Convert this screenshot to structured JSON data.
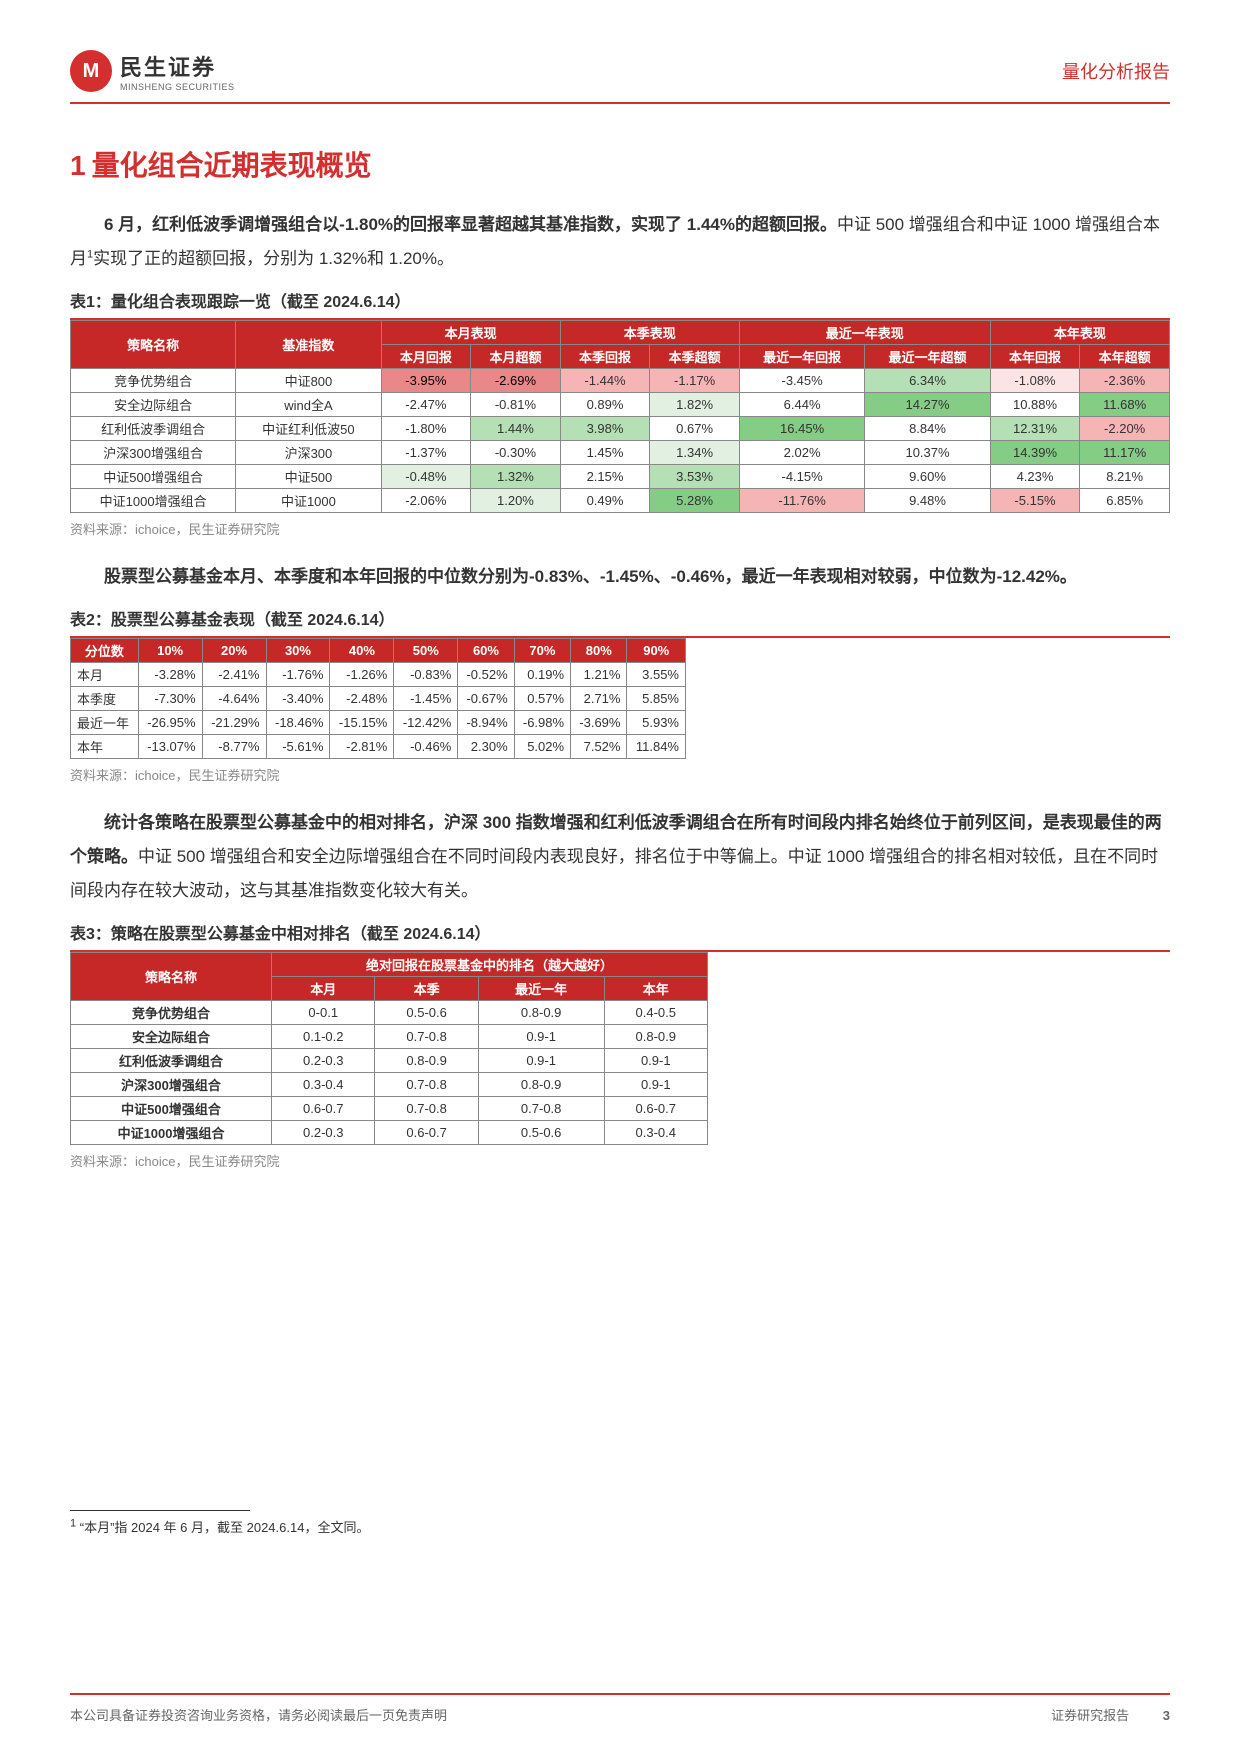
{
  "header": {
    "logo_cn": "民生证券",
    "logo_en": "MINSHENG SECURITIES",
    "logo_letter": "M",
    "right": "量化分析报告"
  },
  "section": {
    "num": "1",
    "title": "量化组合近期表现概览"
  },
  "para1_bold": "6 月，红利低波季调增强组合以-1.80%的回报率显著超越其基准指数，实现了 1.44%的超额回报。",
  "para1_rest": "中证 500 增强组合和中证 1000 增强组合本月",
  "para1_sup": "1",
  "para1_tail": "实现了正的超额回报，分别为 1.32%和 1.20%。",
  "table1": {
    "title": "表1：量化组合表现跟踪一览（截至 2024.6.14）",
    "group_headers": [
      "策略名称",
      "基准指数",
      "本月表现",
      "本季表现",
      "最近一年表现",
      "本年表现"
    ],
    "sub_headers": [
      "本月回报",
      "本月超额",
      "本季回报",
      "本季超额",
      "最近一年回报",
      "最近一年超额",
      "本年回报",
      "本年超额"
    ],
    "rows": [
      {
        "s": "竞争优势组合",
        "b": "中证800",
        "cells": [
          {
            "v": "-3.95%",
            "c": "neg-dark"
          },
          {
            "v": "-2.69%",
            "c": "neg-dark"
          },
          {
            "v": "-1.44%",
            "c": "neg-med"
          },
          {
            "v": "-1.17%",
            "c": "neg-med"
          },
          {
            "v": "-3.45%",
            "c": ""
          },
          {
            "v": "6.34%",
            "c": "pos-med"
          },
          {
            "v": "-1.08%",
            "c": "neg-light"
          },
          {
            "v": "-2.36%",
            "c": "neg-med"
          }
        ]
      },
      {
        "s": "安全边际组合",
        "b": "wind全A",
        "cells": [
          {
            "v": "-2.47%",
            "c": ""
          },
          {
            "v": "-0.81%",
            "c": ""
          },
          {
            "v": "0.89%",
            "c": ""
          },
          {
            "v": "1.82%",
            "c": "pos-light"
          },
          {
            "v": "6.44%",
            "c": ""
          },
          {
            "v": "14.27%",
            "c": "pos-dark"
          },
          {
            "v": "10.88%",
            "c": ""
          },
          {
            "v": "11.68%",
            "c": "pos-dark"
          }
        ]
      },
      {
        "s": "红利低波季调组合",
        "b": "中证红利低波50",
        "cells": [
          {
            "v": "-1.80%",
            "c": ""
          },
          {
            "v": "1.44%",
            "c": "pos-med"
          },
          {
            "v": "3.98%",
            "c": "pos-med"
          },
          {
            "v": "0.67%",
            "c": ""
          },
          {
            "v": "16.45%",
            "c": "pos-dark"
          },
          {
            "v": "8.84%",
            "c": ""
          },
          {
            "v": "12.31%",
            "c": "pos-med"
          },
          {
            "v": "-2.20%",
            "c": "neg-med"
          }
        ]
      },
      {
        "s": "沪深300增强组合",
        "b": "沪深300",
        "cells": [
          {
            "v": "-1.37%",
            "c": ""
          },
          {
            "v": "-0.30%",
            "c": ""
          },
          {
            "v": "1.45%",
            "c": ""
          },
          {
            "v": "1.34%",
            "c": "pos-light"
          },
          {
            "v": "2.02%",
            "c": ""
          },
          {
            "v": "10.37%",
            "c": ""
          },
          {
            "v": "14.39%",
            "c": "pos-dark"
          },
          {
            "v": "11.17%",
            "c": "pos-dark"
          }
        ]
      },
      {
        "s": "中证500增强组合",
        "b": "中证500",
        "cells": [
          {
            "v": "-0.48%",
            "c": "pos-light"
          },
          {
            "v": "1.32%",
            "c": "pos-med"
          },
          {
            "v": "2.15%",
            "c": ""
          },
          {
            "v": "3.53%",
            "c": "pos-med"
          },
          {
            "v": "-4.15%",
            "c": ""
          },
          {
            "v": "9.60%",
            "c": ""
          },
          {
            "v": "4.23%",
            "c": ""
          },
          {
            "v": "8.21%",
            "c": ""
          }
        ]
      },
      {
        "s": "中证1000增强组合",
        "b": "中证1000",
        "cells": [
          {
            "v": "-2.06%",
            "c": ""
          },
          {
            "v": "1.20%",
            "c": "pos-light"
          },
          {
            "v": "0.49%",
            "c": ""
          },
          {
            "v": "5.28%",
            "c": "pos-dark"
          },
          {
            "v": "-11.76%",
            "c": "neg-med"
          },
          {
            "v": "9.48%",
            "c": ""
          },
          {
            "v": "-5.15%",
            "c": "neg-med"
          },
          {
            "v": "6.85%",
            "c": ""
          }
        ]
      }
    ],
    "source": "资料来源：ichoice，民生证券研究院"
  },
  "para2_bold": "股票型公募基金本月、本季度和本年回报的中位数分别为-0.83%、-1.45%、-0.46%，最近一年表现相对较弱，中位数为-12.42%。",
  "table2": {
    "title": "表2：股票型公募基金表现（截至 2024.6.14）",
    "headers": [
      "分位数",
      "10%",
      "20%",
      "30%",
      "40%",
      "50%",
      "60%",
      "70%",
      "80%",
      "90%"
    ],
    "rows": [
      {
        "l": "本月",
        "v": [
          "-3.28%",
          "-2.41%",
          "-1.76%",
          "-1.26%",
          "-0.83%",
          "-0.52%",
          "0.19%",
          "1.21%",
          "3.55%"
        ]
      },
      {
        "l": "本季度",
        "v": [
          "-7.30%",
          "-4.64%",
          "-3.40%",
          "-2.48%",
          "-1.45%",
          "-0.67%",
          "0.57%",
          "2.71%",
          "5.85%"
        ]
      },
      {
        "l": "最近一年",
        "v": [
          "-26.95%",
          "-21.29%",
          "-18.46%",
          "-15.15%",
          "-12.42%",
          "-8.94%",
          "-6.98%",
          "-3.69%",
          "5.93%"
        ]
      },
      {
        "l": "本年",
        "v": [
          "-13.07%",
          "-8.77%",
          "-5.61%",
          "-2.81%",
          "-0.46%",
          "2.30%",
          "5.02%",
          "7.52%",
          "11.84%"
        ]
      }
    ],
    "source": "资料来源：ichoice，民生证券研究院"
  },
  "para3_bold": "统计各策略在股票型公募基金中的相对排名，沪深 300 指数增强和红利低波季调组合在所有时间段内排名始终位于前列区间，是表现最佳的两个策略。",
  "para3_rest": "中证 500 增强组合和安全边际增强组合在不同时间段内表现良好，排名位于中等偏上。中证 1000 增强组合的排名相对较低，且在不同时间段内存在较大波动，这与其基准指数变化较大有关。",
  "table3": {
    "title": "表3：策略在股票型公募基金中相对排名（截至 2024.6.14）",
    "group_header": "绝对回报在股票基金中的排名（越大越好）",
    "sub_headers": [
      "策略名称",
      "本月",
      "本季",
      "最近一年",
      "本年"
    ],
    "rows": [
      {
        "s": "竞争优势组合",
        "v": [
          "0-0.1",
          "0.5-0.6",
          "0.8-0.9",
          "0.4-0.5"
        ]
      },
      {
        "s": "安全边际组合",
        "v": [
          "0.1-0.2",
          "0.7-0.8",
          "0.9-1",
          "0.8-0.9"
        ]
      },
      {
        "s": "红利低波季调组合",
        "v": [
          "0.2-0.3",
          "0.8-0.9",
          "0.9-1",
          "0.9-1"
        ]
      },
      {
        "s": "沪深300增强组合",
        "v": [
          "0.3-0.4",
          "0.7-0.8",
          "0.8-0.9",
          "0.9-1"
        ]
      },
      {
        "s": "中证500增强组合",
        "v": [
          "0.6-0.7",
          "0.7-0.8",
          "0.7-0.8",
          "0.6-0.7"
        ]
      },
      {
        "s": "中证1000增强组合",
        "v": [
          "0.2-0.3",
          "0.6-0.7",
          "0.5-0.6",
          "0.3-0.4"
        ]
      }
    ],
    "source": "资料来源：ichoice，民生证券研究院"
  },
  "footnote": {
    "marker": "1",
    "text": "“本月”指 2024 年 6 月，截至 2024.6.14，全文同。"
  },
  "footer": {
    "left": "本公司具备证券投资咨询业务资格，请务必阅读最后一页免责声明",
    "right": "证券研究报告",
    "page": "3"
  },
  "colors": {
    "brand": "#d32f2f",
    "header_bg": "#c62828"
  }
}
